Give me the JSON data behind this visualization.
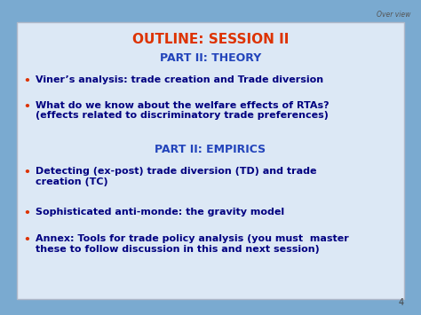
{
  "title": "OUTLINE: SESSION II",
  "title_color": "#DD3300",
  "subtitle1": "PART II: THEORY",
  "subtitle1_color": "#2244BB",
  "subtitle2": "PART II: EMPIRICS",
  "subtitle2_color": "#2244BB",
  "bullet_color": "#DD3300",
  "text_color": "#000080",
  "background_outer": "#7aaad0",
  "background_inner": "#dce8f5",
  "border_color": "#b0b8c8",
  "overlay_label": "Over view",
  "page_number": "4",
  "bullets_theory": [
    "Viner’s analysis: trade creation and Trade diversion",
    "What do we know about the welfare effects of RTAs?\n(effects related to discriminatory trade preferences)"
  ],
  "bullets_empirics": [
    "Detecting (ex-post) trade diversion (TD) and trade\ncreation (TC)",
    "Sophisticated anti-monde: the gravity model",
    "Annex: Tools for trade policy analysis (you must  master\nthese to follow discussion in this and next session)"
  ]
}
